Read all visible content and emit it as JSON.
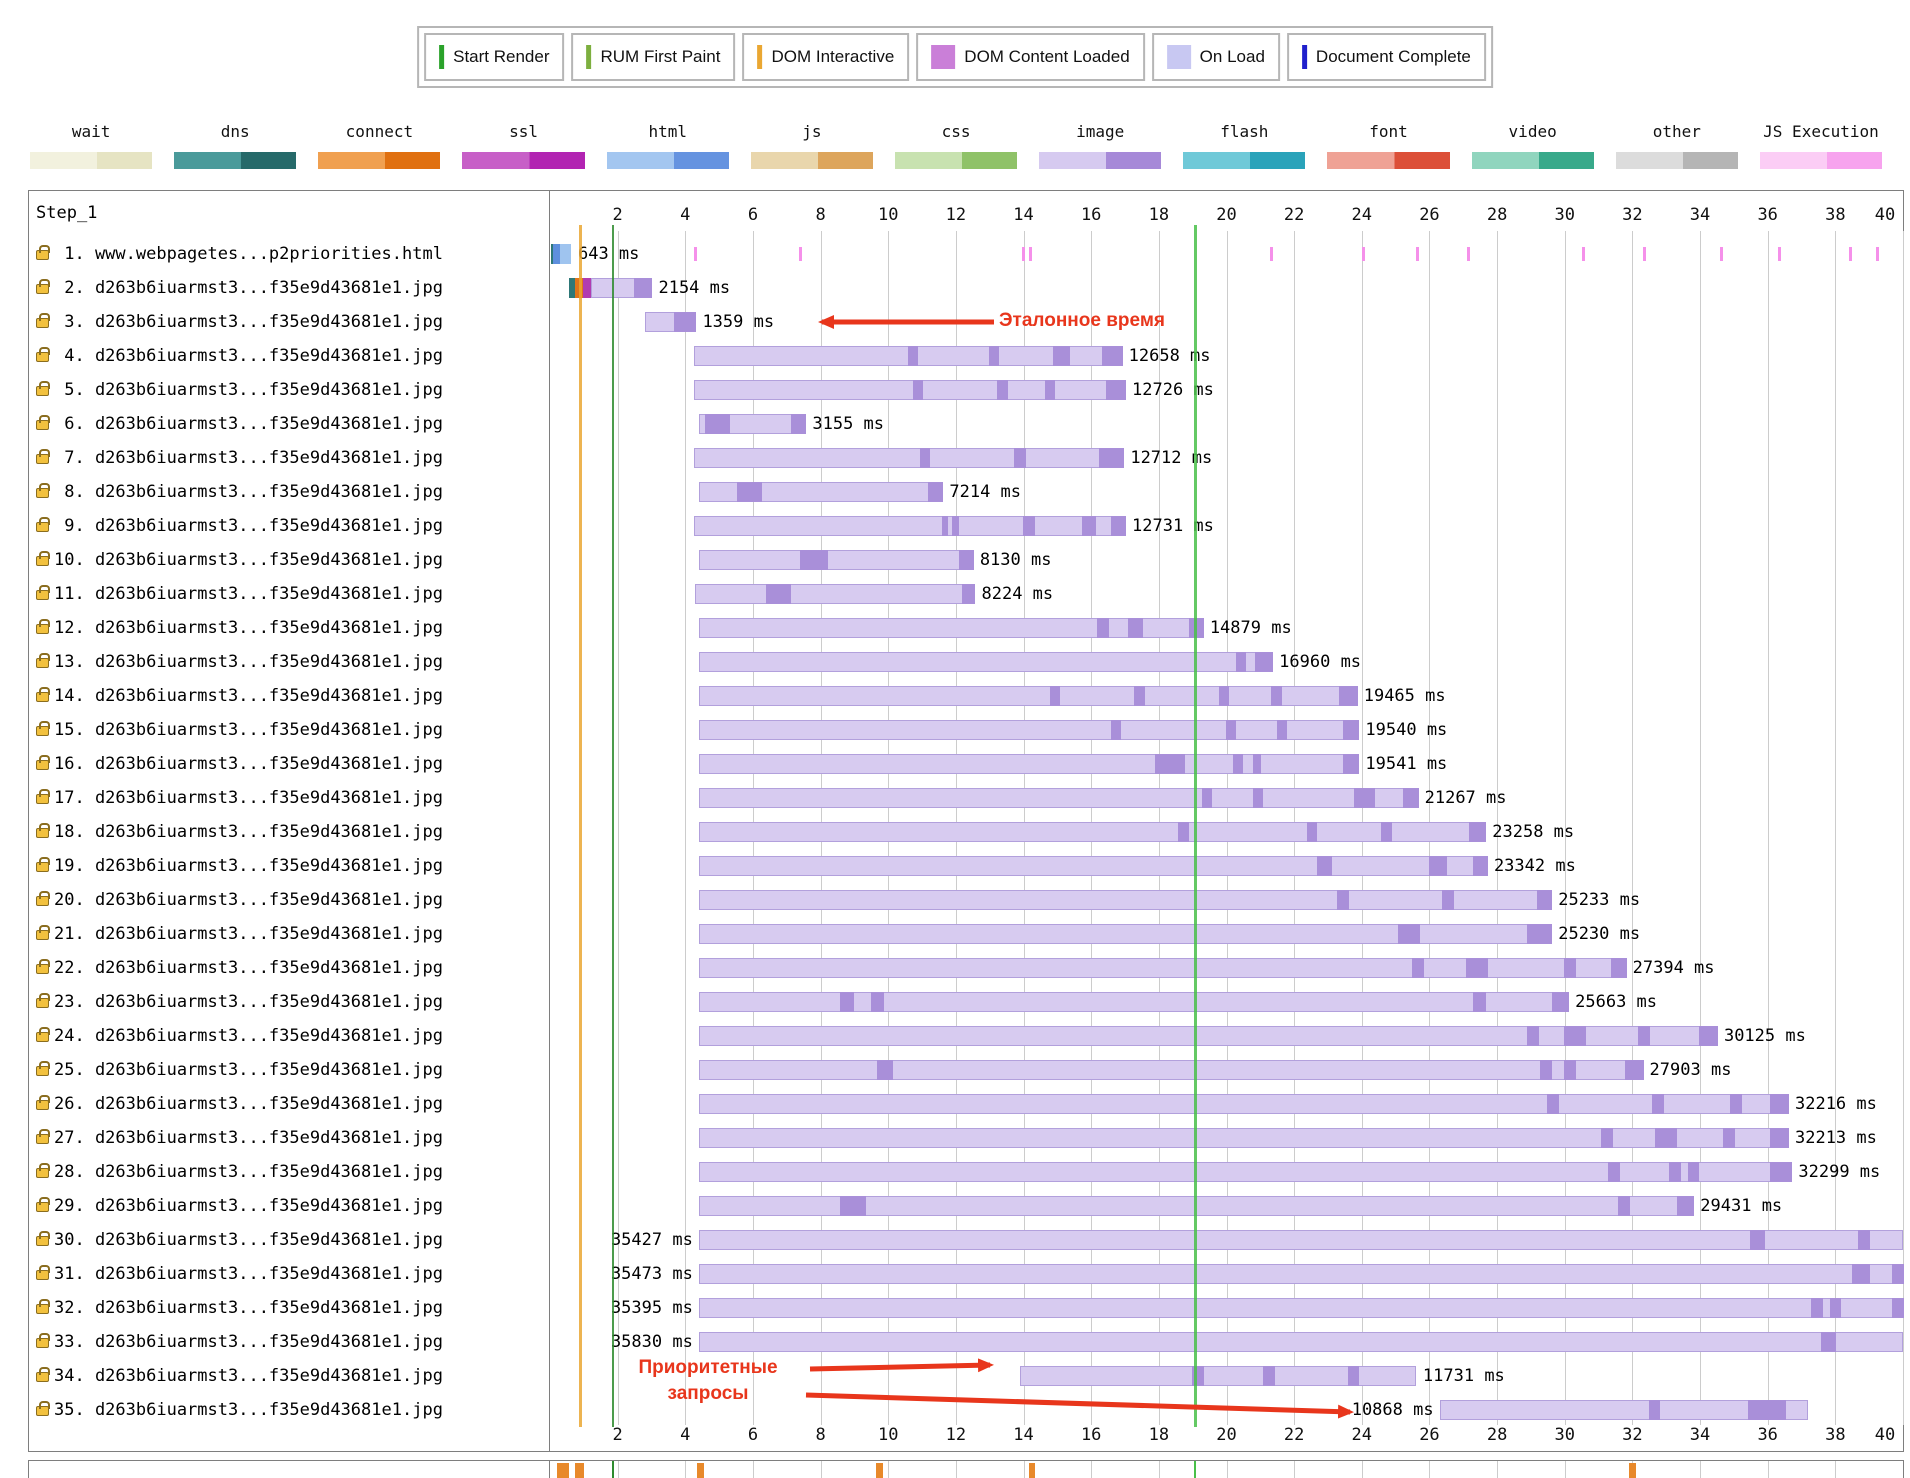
{
  "event_legend": {
    "items": [
      {
        "label": "Start Render",
        "color": "#2aa22a",
        "icon": "line"
      },
      {
        "label": "RUM First Paint",
        "color": "#7daf3f",
        "icon": "line"
      },
      {
        "label": "DOM Interactive",
        "color": "#eaa732",
        "icon": "line"
      },
      {
        "label": "DOM Content Loaded",
        "color": "#ca7fd8",
        "icon": "band"
      },
      {
        "label": "On Load",
        "color": "#c8c8f2",
        "icon": "band"
      },
      {
        "label": "Document Complete",
        "color": "#2020cc",
        "icon": "line"
      }
    ]
  },
  "resource_legend": {
    "items": [
      {
        "label": "wait",
        "light": "#f2f1de",
        "dark": "#e6e4c3"
      },
      {
        "label": "dns",
        "light": "#4a9a9a",
        "dark": "#266a6a"
      },
      {
        "label": "connect",
        "light": "#f0a050",
        "dark": "#e07010"
      },
      {
        "label": "ssl",
        "light": "#c75fc7",
        "dark": "#b224b2"
      },
      {
        "label": "html",
        "light": "#a3c6f0",
        "dark": "#6593e0"
      },
      {
        "label": "js",
        "light": "#e9d6ac",
        "dark": "#dda55c"
      },
      {
        "label": "css",
        "light": "#c8e2b0",
        "dark": "#8fc268"
      },
      {
        "label": "image",
        "light": "#d6caf0",
        "dark": "#a689d8"
      },
      {
        "label": "flash",
        "light": "#6fc9d8",
        "dark": "#2aa3ba"
      },
      {
        "label": "font",
        "light": "#efa295",
        "dark": "#dc4f38"
      },
      {
        "label": "video",
        "light": "#90d5be",
        "dark": "#38a98a"
      },
      {
        "label": "other",
        "light": "#dcdcdc",
        "dark": "#b5b5b5"
      },
      {
        "label": "JS Execution",
        "light": "#fbcdf5",
        "dark": "#f7a3ee"
      }
    ]
  },
  "colors": {
    "dns": "#2e7878",
    "connect": "#e0751a",
    "ssl": "#b13cb1",
    "html_dark": "#5e8fdd",
    "html_light": "#9fc4ef",
    "image_light": "#d7cbf0",
    "image_dark": "#a98fd9",
    "js_exec": "#f590ea",
    "accent_red": "#e8361c"
  },
  "chart_data": {
    "type": "waterfall",
    "title": "Step_1",
    "x_axis": {
      "unit": "s",
      "min": 0,
      "max": 40,
      "ticks": [
        2,
        4,
        6,
        8,
        10,
        12,
        14,
        16,
        18,
        20,
        22,
        24,
        26,
        28,
        30,
        32,
        34,
        36,
        38,
        40
      ]
    },
    "event_lines": [
      {
        "name": "dom-interactive",
        "time_s": 0.85,
        "color": "#eaa732",
        "width": 3
      },
      {
        "name": "start-render",
        "time_s": 1.83,
        "color": "#2e8b2e",
        "width": 2
      },
      {
        "name": "rum-first-paint",
        "time_s": 19.05,
        "color": "#49c049",
        "width": 3
      }
    ],
    "rows": [
      {
        "num": "1.",
        "url": "www.webpagetes...p2priorities.html",
        "t": "643 ms",
        "s": null,
        "e": null,
        "pre": [
          {
            "c": "dns",
            "s": 0.02,
            "e": 0.1
          },
          {
            "c": "html_dark",
            "s": 0.1,
            "e": 0.3
          },
          {
            "c": "html_light",
            "s": 0.3,
            "e": 0.62
          }
        ],
        "js": [
          4.25,
          7.35,
          13.95,
          14.15,
          21.3,
          24.0,
          25.6,
          27.1,
          30.5,
          32.3,
          34.6,
          36.3,
          38.4,
          39.2
        ]
      },
      {
        "num": "2.",
        "url": "d263b6iuarmst3...f35e9d43681e1.jpg",
        "t": "2154 ms",
        "pre": [
          {
            "c": "dns",
            "s": 0.55,
            "e": 0.73
          },
          {
            "c": "connect",
            "s": 0.73,
            "e": 0.97
          },
          {
            "c": "ssl",
            "s": 0.97,
            "e": 1.2
          }
        ],
        "s": 1.2,
        "e": 3.0,
        "m": [
          [
            2.45,
            3.0
          ]
        ]
      },
      {
        "num": "3.",
        "url": "d263b6iuarmst3...f35e9d43681e1.jpg",
        "t": "1359 ms",
        "s": 2.8,
        "e": 4.3,
        "m": [
          [
            3.65,
            4.3
          ]
        ]
      },
      {
        "num": "4.",
        "url": "d263b6iuarmst3...f35e9d43681e1.jpg",
        "t": "12658 ms",
        "s": 4.25,
        "e": 16.9,
        "m": [
          [
            10.55,
            10.85
          ],
          [
            12.95,
            13.25
          ],
          [
            14.85,
            15.35
          ],
          [
            16.3,
            16.9
          ]
        ]
      },
      {
        "num": "5.",
        "url": "d263b6iuarmst3...f35e9d43681e1.jpg",
        "t": "12726 ms",
        "s": 4.25,
        "e": 17.0,
        "m": [
          [
            10.7,
            11.0
          ],
          [
            13.2,
            13.5
          ],
          [
            14.6,
            14.9
          ],
          [
            16.4,
            17.0
          ]
        ]
      },
      {
        "num": "6.",
        "url": "d263b6iuarmst3...f35e9d43681e1.jpg",
        "t": "3155 ms",
        "s": 4.4,
        "e": 7.55,
        "m": [
          [
            4.55,
            5.3
          ],
          [
            7.1,
            7.55
          ]
        ]
      },
      {
        "num": "7.",
        "url": "d263b6iuarmst3...f35e9d43681e1.jpg",
        "t": "12712 ms",
        "s": 4.25,
        "e": 16.95,
        "m": [
          [
            10.9,
            11.2
          ],
          [
            13.7,
            14.05
          ],
          [
            16.2,
            16.95
          ]
        ]
      },
      {
        "num": "8.",
        "url": "d263b6iuarmst3...f35e9d43681e1.jpg",
        "t": "7214 ms",
        "s": 4.4,
        "e": 11.6,
        "m": [
          [
            5.5,
            6.25
          ],
          [
            11.15,
            11.6
          ]
        ]
      },
      {
        "num": "9.",
        "url": "d263b6iuarmst3...f35e9d43681e1.jpg",
        "t": "12731 ms",
        "s": 4.25,
        "e": 17.0,
        "m": [
          [
            11.55,
            11.75
          ],
          [
            11.85,
            12.05
          ],
          [
            13.95,
            14.3
          ],
          [
            15.7,
            16.1
          ],
          [
            16.55,
            17.0
          ]
        ]
      },
      {
        "num": "10.",
        "url": "d263b6iuarmst3...f35e9d43681e1.jpg",
        "t": "8130 ms",
        "s": 4.4,
        "e": 12.5,
        "m": [
          [
            7.35,
            8.2
          ],
          [
            12.05,
            12.5
          ]
        ]
      },
      {
        "num": "11.",
        "url": "d263b6iuarmst3...f35e9d43681e1.jpg",
        "t": "8224 ms",
        "s": 4.3,
        "e": 12.55,
        "m": [
          [
            6.35,
            7.1
          ],
          [
            12.15,
            12.55
          ]
        ]
      },
      {
        "num": "12.",
        "url": "d263b6iuarmst3...f35e9d43681e1.jpg",
        "t": "14879 ms",
        "s": 4.4,
        "e": 19.3,
        "m": [
          [
            16.15,
            16.5
          ],
          [
            17.05,
            17.5
          ],
          [
            18.85,
            19.3
          ]
        ]
      },
      {
        "num": "13.",
        "url": "d263b6iuarmst3...f35e9d43681e1.jpg",
        "t": "16960 ms",
        "s": 4.4,
        "e": 21.35,
        "m": [
          [
            20.25,
            20.55
          ],
          [
            20.8,
            21.35
          ]
        ]
      },
      {
        "num": "14.",
        "url": "d263b6iuarmst3...f35e9d43681e1.jpg",
        "t": "19465 ms",
        "s": 4.4,
        "e": 23.85,
        "m": [
          [
            14.75,
            15.05
          ],
          [
            17.25,
            17.55
          ],
          [
            19.75,
            20.05
          ],
          [
            21.3,
            21.6
          ],
          [
            23.3,
            23.85
          ]
        ]
      },
      {
        "num": "15.",
        "url": "d263b6iuarmst3...f35e9d43681e1.jpg",
        "t": "19540 ms",
        "s": 4.4,
        "e": 23.9,
        "m": [
          [
            16.55,
            16.85
          ],
          [
            19.95,
            20.25
          ],
          [
            21.45,
            21.75
          ],
          [
            23.4,
            23.9
          ]
        ]
      },
      {
        "num": "16.",
        "url": "d263b6iuarmst3...f35e9d43681e1.jpg",
        "t": "19541 ms",
        "s": 4.4,
        "e": 23.9,
        "m": [
          [
            17.85,
            18.75
          ],
          [
            20.15,
            20.45
          ],
          [
            20.75,
            21.0
          ],
          [
            23.4,
            23.9
          ]
        ]
      },
      {
        "num": "17.",
        "url": "d263b6iuarmst3...f35e9d43681e1.jpg",
        "t": "21267 ms",
        "s": 4.4,
        "e": 25.65,
        "m": [
          [
            19.25,
            19.55
          ],
          [
            20.75,
            21.05
          ],
          [
            23.75,
            24.35
          ],
          [
            25.2,
            25.65
          ]
        ]
      },
      {
        "num": "18.",
        "url": "d263b6iuarmst3...f35e9d43681e1.jpg",
        "t": "23258 ms",
        "s": 4.4,
        "e": 27.65,
        "m": [
          [
            18.55,
            18.85
          ],
          [
            22.35,
            22.65
          ],
          [
            24.55,
            24.85
          ],
          [
            27.15,
            27.65
          ]
        ]
      },
      {
        "num": "19.",
        "url": "d263b6iuarmst3...f35e9d43681e1.jpg",
        "t": "23342 ms",
        "s": 4.4,
        "e": 27.7,
        "m": [
          [
            22.65,
            23.1
          ],
          [
            25.95,
            26.5
          ],
          [
            27.25,
            27.7
          ]
        ]
      },
      {
        "num": "20.",
        "url": "d263b6iuarmst3...f35e9d43681e1.jpg",
        "t": "25233 ms",
        "s": 4.4,
        "e": 29.6,
        "m": [
          [
            23.25,
            23.6
          ],
          [
            26.35,
            26.7
          ],
          [
            29.15,
            29.6
          ]
        ]
      },
      {
        "num": "21.",
        "url": "d263b6iuarmst3...f35e9d43681e1.jpg",
        "t": "25230 ms",
        "s": 4.4,
        "e": 29.6,
        "m": [
          [
            25.05,
            25.7
          ],
          [
            28.85,
            29.6
          ]
        ]
      },
      {
        "num": "22.",
        "url": "d263b6iuarmst3...f35e9d43681e1.jpg",
        "t": "27394 ms",
        "s": 4.4,
        "e": 31.8,
        "m": [
          [
            25.45,
            25.8
          ],
          [
            27.05,
            27.7
          ],
          [
            29.95,
            30.3
          ],
          [
            31.35,
            31.8
          ]
        ]
      },
      {
        "num": "23.",
        "url": "d263b6iuarmst3...f35e9d43681e1.jpg",
        "t": "25663 ms",
        "s": 4.4,
        "e": 30.1,
        "m": [
          [
            8.55,
            8.95
          ],
          [
            9.45,
            9.85
          ],
          [
            27.25,
            27.65
          ],
          [
            29.6,
            30.1
          ]
        ]
      },
      {
        "num": "24.",
        "url": "d263b6iuarmst3...f35e9d43681e1.jpg",
        "t": "30125 ms",
        "s": 4.4,
        "e": 34.5,
        "m": [
          [
            28.85,
            29.2
          ],
          [
            29.95,
            30.6
          ],
          [
            32.15,
            32.5
          ],
          [
            33.95,
            34.5
          ]
        ]
      },
      {
        "num": "25.",
        "url": "d263b6iuarmst3...f35e9d43681e1.jpg",
        "t": "27903 ms",
        "s": 4.4,
        "e": 32.3,
        "m": [
          [
            9.65,
            10.1
          ],
          [
            29.25,
            29.6
          ],
          [
            29.95,
            30.3
          ],
          [
            31.75,
            32.3
          ]
        ]
      },
      {
        "num": "26.",
        "url": "d263b6iuarmst3...f35e9d43681e1.jpg",
        "t": "32216 ms",
        "s": 4.4,
        "e": 36.6,
        "m": [
          [
            29.45,
            29.8
          ],
          [
            32.55,
            32.9
          ],
          [
            34.85,
            35.2
          ],
          [
            36.05,
            36.6
          ]
        ]
      },
      {
        "num": "27.",
        "url": "d263b6iuarmst3...f35e9d43681e1.jpg",
        "t": "32213 ms",
        "s": 4.4,
        "e": 36.6,
        "m": [
          [
            31.05,
            31.4
          ],
          [
            32.65,
            33.3
          ],
          [
            34.65,
            35.0
          ],
          [
            36.05,
            36.6
          ]
        ]
      },
      {
        "num": "28.",
        "url": "d263b6iuarmst3...f35e9d43681e1.jpg",
        "t": "32299 ms",
        "s": 4.4,
        "e": 36.7,
        "m": [
          [
            31.25,
            31.6
          ],
          [
            33.05,
            33.4
          ],
          [
            33.6,
            33.95
          ],
          [
            36.05,
            36.7
          ]
        ]
      },
      {
        "num": "29.",
        "url": "d263b6iuarmst3...f35e9d43681e1.jpg",
        "t": "29431 ms",
        "s": 4.4,
        "e": 33.8,
        "m": [
          [
            8.55,
            9.3
          ],
          [
            31.55,
            31.9
          ],
          [
            33.3,
            33.8
          ]
        ]
      },
      {
        "num": "30.",
        "url": "d263b6iuarmst3...f35e9d43681e1.jpg",
        "t": "35427 ms",
        "s": 4.4,
        "e": 40,
        "lp": "b",
        "m": [
          [
            35.45,
            35.9
          ],
          [
            38.65,
            39.0
          ]
        ]
      },
      {
        "num": "31.",
        "url": "d263b6iuarmst3...f35e9d43681e1.jpg",
        "t": "35473 ms",
        "s": 4.4,
        "e": 40,
        "lp": "b",
        "m": [
          [
            38.45,
            39.0
          ],
          [
            39.65,
            40
          ]
        ]
      },
      {
        "num": "32.",
        "url": "d263b6iuarmst3...f35e9d43681e1.jpg",
        "t": "35395 ms",
        "s": 4.4,
        "e": 40,
        "lp": "b",
        "m": [
          [
            37.25,
            37.6
          ],
          [
            37.8,
            38.15
          ],
          [
            39.65,
            40
          ]
        ]
      },
      {
        "num": "33.",
        "url": "d263b6iuarmst3...f35e9d43681e1.jpg",
        "t": "35830 ms",
        "s": 4.4,
        "e": 40,
        "lp": "b",
        "m": [
          [
            37.55,
            38.0
          ]
        ]
      },
      {
        "num": "34.",
        "url": "d263b6iuarmst3...f35e9d43681e1.jpg",
        "t": "11731 ms",
        "s": 13.9,
        "e": 25.6,
        "m": [
          [
            18.95,
            19.3
          ],
          [
            21.05,
            21.4
          ],
          [
            23.55,
            23.9
          ]
        ]
      },
      {
        "num": "35.",
        "url": "d263b6iuarmst3...f35e9d43681e1.jpg",
        "t": "10868 ms",
        "s": 26.3,
        "e": 37.2,
        "lp": "b",
        "m": [
          [
            32.45,
            32.8
          ],
          [
            35.4,
            36.5
          ]
        ]
      }
    ]
  },
  "annotations": {
    "reference_time": {
      "text": "Эталонное время"
    },
    "priority_requests": {
      "line1": "Приоритетные",
      "line2": "запросы"
    },
    "color": "#e8361c"
  },
  "secondary_strip": {
    "cpu_color": "#e8892a",
    "segments": [
      [
        0.2,
        0.55
      ],
      [
        0.75,
        1.0
      ],
      [
        4.35,
        4.55
      ],
      [
        9.65,
        9.85
      ],
      [
        14.15,
        14.35
      ],
      [
        31.9,
        32.1
      ]
    ],
    "lines": [
      {
        "time_s": 1.83,
        "color": "#2e8b2e"
      },
      {
        "time_s": 19.05,
        "color": "#49c049"
      }
    ]
  }
}
